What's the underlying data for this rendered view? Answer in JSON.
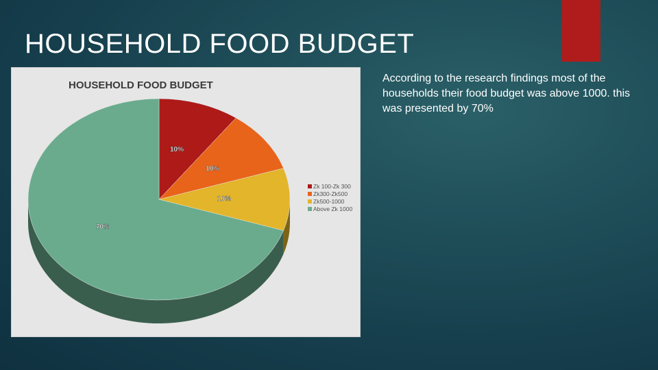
{
  "slide": {
    "title": "HOUSEHOLD FOOD BUDGET",
    "body_text": "According to the research findings most of the households their food budget was above 1000. this was presented by 70%"
  },
  "colors": {
    "accent": "#b01c1c",
    "slice_colors": [
      "#ad1a18",
      "#e8641a",
      "#e2b52a",
      "#6aab8e"
    ]
  },
  "chart_data": {
    "type": "pie",
    "style": "3d",
    "title": "HOUSEHOLD FOOD BUDGET",
    "categories": [
      "Zk 100-Zk 300",
      "Zk300-Zk500",
      "Zk500-1000",
      "Above Zk 1000"
    ],
    "values": [
      10,
      10,
      10,
      70
    ],
    "data_labels": [
      "10%",
      "10%",
      "10%",
      "70%"
    ],
    "legend_position": "right"
  }
}
